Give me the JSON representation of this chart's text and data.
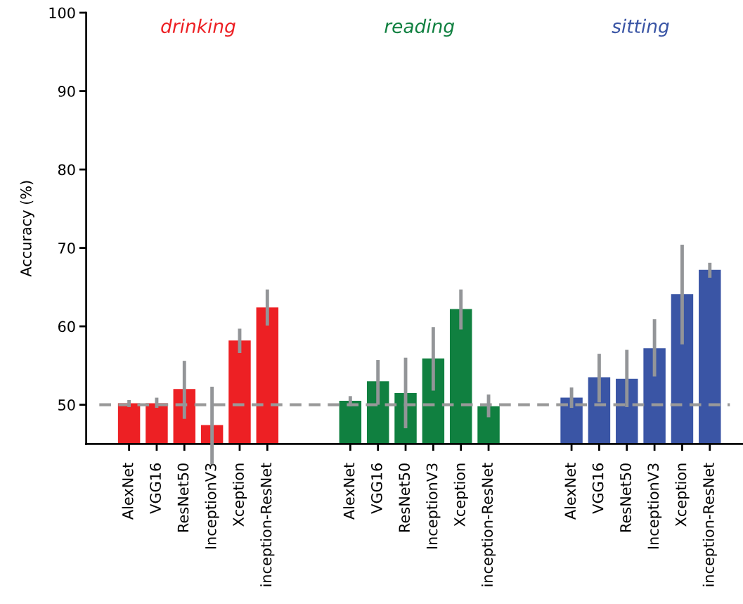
{
  "chart_data": {
    "type": "bar",
    "ylabel": "Accuracy (%)",
    "categories": [
      "AlexNet",
      "VGG16",
      "ResNet50",
      "InceptionV3",
      "Xception",
      "inception-ResNet",
      null,
      null,
      "AlexNet",
      "VGG16",
      "ResNet50",
      "InceptionV3",
      "Xception",
      "inception-ResNet",
      null,
      null,
      "AlexNet",
      "VGG16",
      "ResNet50",
      "InceptionV3",
      "Xception",
      "inception-ResNet"
    ],
    "series": [
      {
        "name": "drinking",
        "color": "#ed2024",
        "values": [
          50.2,
          50.2,
          52.0,
          47.4,
          58.2,
          62.4,
          null,
          null,
          null,
          null,
          null,
          null,
          null,
          null,
          null,
          null,
          null,
          null,
          null,
          null,
          null,
          null
        ],
        "errors": [
          [
            49.7,
            50.6
          ],
          [
            49.6,
            50.9
          ],
          [
            48.2,
            55.6
          ],
          [
            42.4,
            52.3
          ],
          [
            56.6,
            59.7
          ],
          [
            60.1,
            64.7
          ],
          null,
          null,
          null,
          null,
          null,
          null,
          null,
          null,
          null,
          null,
          null,
          null,
          null,
          null,
          null,
          null
        ]
      },
      {
        "name": "reading",
        "color": "#108040",
        "values": [
          null,
          null,
          null,
          null,
          null,
          null,
          null,
          null,
          50.5,
          53.0,
          51.5,
          55.9,
          62.2,
          49.8,
          null,
          null,
          null,
          null,
          null,
          null,
          null,
          null
        ],
        "errors": [
          null,
          null,
          null,
          null,
          null,
          null,
          null,
          null,
          [
            49.8,
            51.1
          ],
          [
            50.0,
            55.7
          ],
          [
            47.0,
            56.0
          ],
          [
            51.8,
            59.9
          ],
          [
            59.6,
            64.7
          ],
          [
            48.4,
            51.3
          ],
          null,
          null,
          null,
          null,
          null,
          null,
          null,
          null
        ]
      },
      {
        "name": "sitting",
        "color": "#3a55a5",
        "values": [
          null,
          null,
          null,
          null,
          null,
          null,
          null,
          null,
          null,
          null,
          null,
          null,
          null,
          null,
          null,
          null,
          50.9,
          53.5,
          53.3,
          57.2,
          64.1,
          67.2
        ],
        "errors": [
          null,
          null,
          null,
          null,
          null,
          null,
          null,
          null,
          null,
          null,
          null,
          null,
          null,
          null,
          null,
          null,
          [
            49.6,
            52.2
          ],
          [
            50.3,
            56.5
          ],
          [
            49.7,
            57.0
          ],
          [
            53.6,
            60.9
          ],
          [
            57.7,
            70.4
          ],
          [
            66.2,
            68.1
          ]
        ]
      }
    ],
    "ylim": [
      45,
      100
    ],
    "yticks": [
      50,
      60,
      70,
      80,
      90,
      100
    ],
    "grid": false,
    "legend": false,
    "ref_lines": [
      {
        "axis": "y",
        "value": 50,
        "label": null,
        "color": "#999999",
        "line_style": "dashed"
      }
    ]
  }
}
